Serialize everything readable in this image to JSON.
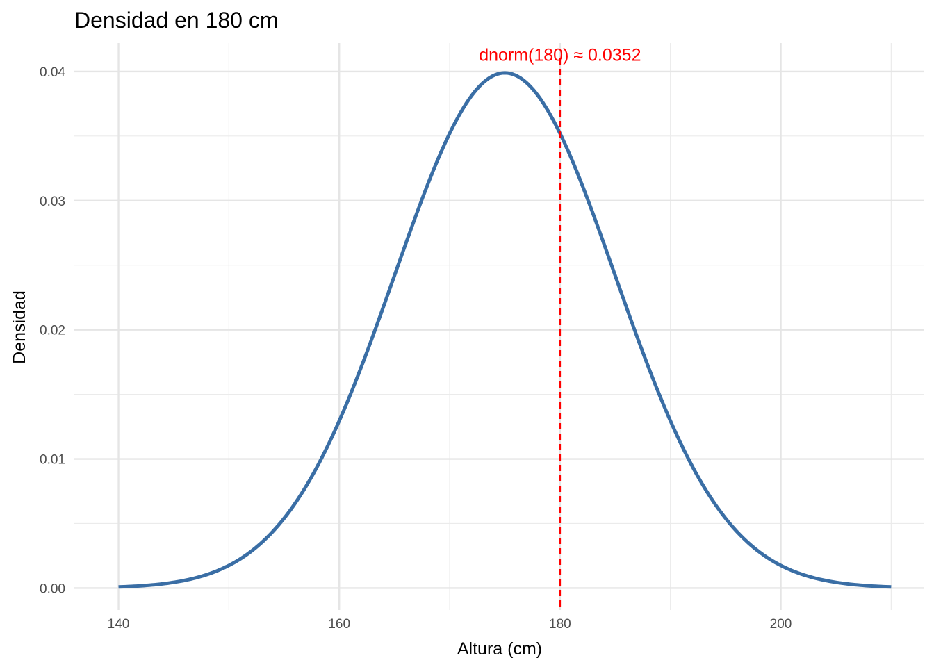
{
  "chart_data": {
    "type": "line",
    "title": "Densidad en 180 cm",
    "xlabel": "Altura (cm)",
    "ylabel": "Densidad",
    "xlim": [
      136,
      213
    ],
    "ylim": [
      -0.0017,
      0.0422
    ],
    "x_ticks": [
      140,
      160,
      180,
      200
    ],
    "x_tick_labels": [
      "140",
      "160",
      "180",
      "200"
    ],
    "x_minor_grid": [
      150,
      170,
      190,
      210
    ],
    "y_ticks": [
      0.0,
      0.01,
      0.02,
      0.03,
      0.04
    ],
    "y_tick_labels": [
      "0.00",
      "0.01",
      "0.02",
      "0.03",
      "0.04"
    ],
    "y_minor_grid": [
      0.005,
      0.015,
      0.025,
      0.035
    ],
    "grid": true,
    "series": [
      {
        "distribution": "normal",
        "mean": 175,
        "sd": 10,
        "x_range": [
          140,
          210
        ],
        "color": "#3A6EA5"
      }
    ],
    "vline": {
      "x": 180,
      "color": "#FF0000",
      "style": "dashed"
    },
    "annotation": {
      "text": "dnorm(180) ≈ 0.0352",
      "x": 180,
      "y": 0.0413,
      "color": "#FF0000"
    }
  }
}
